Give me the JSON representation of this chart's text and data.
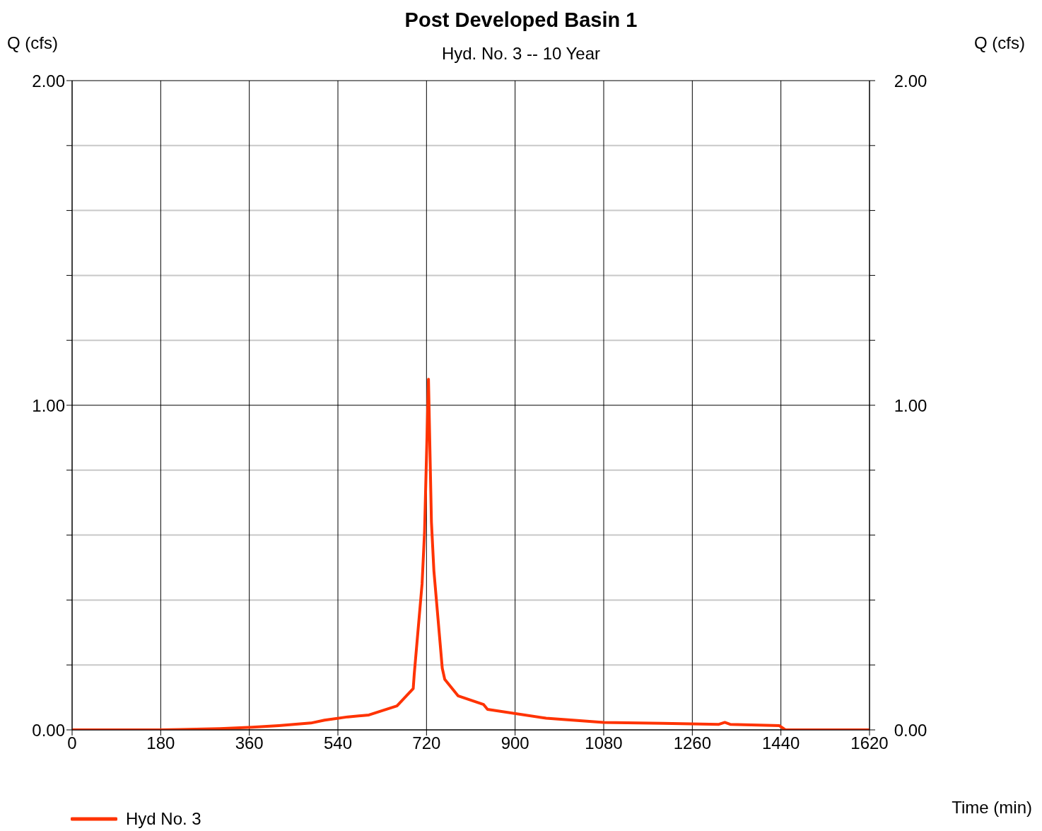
{
  "chart_data": {
    "type": "line",
    "title": "Post Developed Basin 1",
    "subtitle": "Hyd. No. 3 -- 10 Year",
    "xlabel": "Time (min)",
    "ylabel": "Q (cfs)",
    "y2label": "Q (cfs)",
    "x": [
      0,
      180,
      220,
      300,
      366,
      420,
      485,
      513,
      560,
      603,
      660,
      693,
      695,
      711,
      716,
      724,
      730,
      735,
      752,
      757,
      784,
      836,
      844,
      963,
      1080,
      1200,
      1314,
      1326,
      1337,
      1437,
      1449,
      1620
    ],
    "series": [
      {
        "name": "Hyd No. 3",
        "color": "#ff3300",
        "values": [
          0,
          0,
          0.001,
          0.004,
          0.008,
          0.013,
          0.021,
          0.03,
          0.04,
          0.046,
          0.074,
          0.127,
          0.17,
          0.45,
          0.61,
          1.08,
          0.64,
          0.49,
          0.19,
          0.156,
          0.105,
          0.078,
          0.063,
          0.036,
          0.023,
          0.02,
          0.017,
          0.023,
          0.017,
          0.013,
          0,
          0
        ]
      }
    ],
    "xlim": [
      0,
      1620
    ],
    "xticks": [
      0,
      180,
      360,
      540,
      720,
      900,
      1080,
      1260,
      1440,
      1620
    ],
    "ylim": [
      0,
      2
    ],
    "yticks": [
      {
        "value": 0,
        "label": "0.00"
      },
      {
        "value": 0.2,
        "label": null
      },
      {
        "value": 0.4,
        "label": null
      },
      {
        "value": 0.6,
        "label": null
      },
      {
        "value": 0.8,
        "label": null
      },
      {
        "value": 1,
        "label": "1.00"
      },
      {
        "value": 1.2,
        "label": null
      },
      {
        "value": 1.4,
        "label": null
      },
      {
        "value": 1.6,
        "label": null
      },
      {
        "value": 1.8,
        "label": null
      },
      {
        "value": 2,
        "label": "2.00"
      }
    ],
    "y2lim": [
      0,
      2
    ],
    "y2ticks": [
      {
        "value": 0,
        "label": "0.00"
      },
      {
        "value": 0.2,
        "label": null
      },
      {
        "value": 0.4,
        "label": null
      },
      {
        "value": 0.6,
        "label": null
      },
      {
        "value": 0.8,
        "label": null
      },
      {
        "value": 1,
        "label": "1.00"
      },
      {
        "value": 1.2,
        "label": null
      },
      {
        "value": 1.4,
        "label": null
      },
      {
        "value": 1.6,
        "label": null
      },
      {
        "value": 1.8,
        "label": null
      },
      {
        "value": 2,
        "label": "2.00"
      }
    ],
    "grid": true,
    "legend": "bottom left",
    "marker": "none",
    "line_style": "solid"
  }
}
